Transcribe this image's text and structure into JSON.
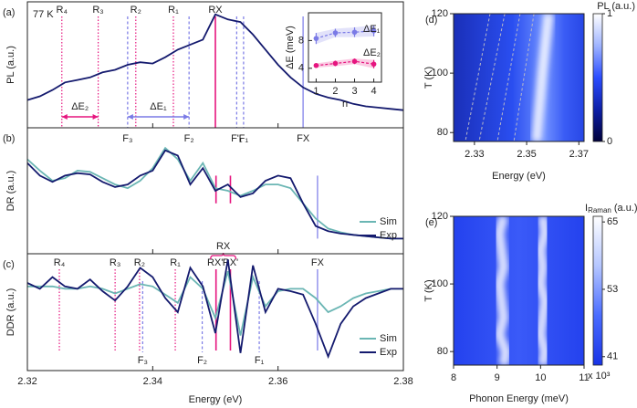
{
  "chart_data": [
    {
      "type": "line",
      "panel_label": "(a)",
      "annotation": "77 K",
      "ylabel": "PL (a.u.)",
      "xlim": [
        2.32,
        2.38
      ],
      "ylim": [
        0,
        1
      ],
      "color": "#141a6e",
      "x": [
        2.32,
        2.322,
        2.324,
        2.326,
        2.328,
        2.33,
        2.332,
        2.334,
        2.336,
        2.338,
        2.34,
        2.342,
        2.344,
        2.346,
        2.348,
        2.35,
        2.352,
        2.354,
        2.356,
        2.358,
        2.36,
        2.362,
        2.364,
        2.366,
        2.368,
        2.37,
        2.372,
        2.374,
        2.376,
        2.378,
        2.38
      ],
      "values": [
        0.22,
        0.25,
        0.3,
        0.36,
        0.38,
        0.4,
        0.44,
        0.46,
        0.5,
        0.52,
        0.51,
        0.56,
        0.62,
        0.66,
        0.7,
        0.9,
        0.86,
        0.84,
        0.74,
        0.62,
        0.5,
        0.4,
        0.32,
        0.27,
        0.24,
        0.22,
        0.19,
        0.17,
        0.16,
        0.15,
        0.14
      ],
      "top_lines": [
        {
          "label": "R₄",
          "x": 2.3255,
          "color": "#e6157f",
          "style": "dotted"
        },
        {
          "label": "R₃",
          "x": 2.3313,
          "color": "#e6157f",
          "style": "dotted"
        },
        {
          "label": "R₂",
          "x": 2.3373,
          "color": "#e6157f",
          "style": "dotted"
        },
        {
          "label": "R₁",
          "x": 2.3433,
          "color": "#e6157f",
          "style": "dotted"
        },
        {
          "label": "RX",
          "x": 2.35,
          "color": "#e6157f",
          "style": "solid"
        }
      ],
      "bottom_lines": [
        {
          "label": "F₃",
          "x": 2.336,
          "color": "#7a7ae6",
          "style": "dashed"
        },
        {
          "label": "F₂",
          "x": 2.3458,
          "color": "#7a7ae6",
          "style": "dashed"
        },
        {
          "label": "F'₁",
          "x": 2.3534,
          "color": "#7a7ae6",
          "style": "dashed"
        },
        {
          "label": "F₁",
          "x": 2.3545,
          "color": "#7a7ae6",
          "style": "dashed"
        },
        {
          "label": "FX",
          "x": 2.364,
          "color": "#9a9aee",
          "style": "solid"
        }
      ],
      "spans": [
        {
          "label": "ΔE₂",
          "from": 2.3255,
          "to": 2.3313,
          "color": "#e6157f"
        },
        {
          "label": "ΔE₁",
          "from": 2.336,
          "to": 2.3458,
          "color": "#7a7ae6"
        }
      ]
    },
    {
      "type": "errorbar",
      "xlabel": "n",
      "ylabel": "ΔE (meV)",
      "x": [
        1,
        2,
        3,
        4
      ],
      "xlim": [
        0.6,
        4.4
      ],
      "ylim": [
        2,
        12
      ],
      "xticks": [
        1,
        2,
        3,
        4
      ],
      "yticks": [
        4,
        8
      ],
      "series": [
        {
          "name": "ΔE₁",
          "color": "#7a7ae6",
          "values": [
            8.3,
            9.1,
            9.2,
            9.4
          ],
          "errors": [
            0.8,
            0.6,
            0.7,
            0.8
          ]
        },
        {
          "name": "ΔE₂",
          "color": "#e6157f",
          "values": [
            4.4,
            4.7,
            5.0,
            4.6
          ],
          "errors": [
            0.3,
            0.4,
            0.4,
            0.6
          ]
        }
      ]
    },
    {
      "type": "line",
      "panel_label": "(b)",
      "ylabel": "DR (a.u.)",
      "xlim": [
        2.32,
        2.38
      ],
      "ylim": [
        0,
        1
      ],
      "legend": "lower right",
      "x": [
        2.32,
        2.322,
        2.324,
        2.326,
        2.328,
        2.33,
        2.332,
        2.334,
        2.336,
        2.338,
        2.34,
        2.342,
        2.344,
        2.346,
        2.348,
        2.35,
        2.352,
        2.354,
        2.356,
        2.358,
        2.36,
        2.362,
        2.364,
        2.366,
        2.368,
        2.37,
        2.372,
        2.374,
        2.376,
        2.378,
        2.38
      ],
      "series": [
        {
          "name": "Sim",
          "color": "#6bb6b4",
          "values": [
            0.75,
            0.66,
            0.58,
            0.6,
            0.66,
            0.65,
            0.6,
            0.55,
            0.52,
            0.58,
            0.68,
            0.84,
            0.75,
            0.58,
            0.72,
            0.52,
            0.5,
            0.46,
            0.5,
            0.55,
            0.55,
            0.52,
            0.4,
            0.28,
            0.2,
            0.17,
            0.15,
            0.14,
            0.13,
            0.12,
            0.12
          ]
        },
        {
          "name": "Exp",
          "color": "#141a6e",
          "values": [
            0.72,
            0.62,
            0.57,
            0.62,
            0.64,
            0.63,
            0.57,
            0.53,
            0.55,
            0.62,
            0.66,
            0.82,
            0.78,
            0.55,
            0.68,
            0.5,
            0.55,
            0.45,
            0.48,
            0.58,
            0.62,
            0.6,
            0.4,
            0.22,
            0.18,
            0.16,
            0.15,
            0.14,
            0.13,
            0.12,
            0.12
          ]
        }
      ],
      "markers": [
        {
          "x": 2.3501,
          "color": "#e6157f",
          "style": "solid"
        },
        {
          "x": 2.3524,
          "color": "#e6157f",
          "style": "solid"
        },
        {
          "x": 2.3663,
          "color": "#9a9aee",
          "style": "solid"
        }
      ]
    },
    {
      "type": "line",
      "panel_label": "(c)",
      "ylabel": "DDR (a.u.)",
      "xlabel": "Energy (eV)",
      "xlim": [
        2.32,
        2.38
      ],
      "ylim": [
        0,
        1
      ],
      "xticks": [
        2.32,
        2.34,
        2.36,
        2.38
      ],
      "legend": "lower right",
      "group_label": "RX",
      "x": [
        2.32,
        2.322,
        2.324,
        2.326,
        2.328,
        2.33,
        2.332,
        2.334,
        2.336,
        2.338,
        2.34,
        2.342,
        2.344,
        2.346,
        2.348,
        2.35,
        2.352,
        2.354,
        2.356,
        2.358,
        2.36,
        2.362,
        2.364,
        2.366,
        2.368,
        2.37,
        2.372,
        2.374,
        2.376,
        2.378,
        2.38
      ],
      "series": [
        {
          "name": "Sim",
          "color": "#6bb6b4",
          "values": [
            0.72,
            0.72,
            0.72,
            0.7,
            0.7,
            0.72,
            0.7,
            0.66,
            0.7,
            0.74,
            0.72,
            0.65,
            0.58,
            0.8,
            0.7,
            0.45,
            0.85,
            0.3,
            0.8,
            0.55,
            0.68,
            0.7,
            0.7,
            0.62,
            0.5,
            0.55,
            0.62,
            0.66,
            0.68,
            0.7,
            0.7
          ]
        },
        {
          "name": "Exp",
          "color": "#141a6e",
          "values": [
            0.75,
            0.7,
            0.8,
            0.72,
            0.7,
            0.78,
            0.68,
            0.6,
            0.72,
            0.88,
            0.8,
            0.62,
            0.5,
            0.88,
            0.72,
            0.32,
            0.95,
            0.15,
            0.9,
            0.5,
            0.7,
            0.68,
            0.65,
            0.4,
            0.12,
            0.4,
            0.55,
            0.62,
            0.66,
            0.7,
            0.7
          ]
        }
      ],
      "top_lines": [
        {
          "label": "R₄",
          "x": 2.3251,
          "color": "#e6157f",
          "style": "dotted"
        },
        {
          "label": "R₃",
          "x": 2.334,
          "color": "#e6157f",
          "style": "dotted"
        },
        {
          "label": "R₂",
          "x": 2.3379,
          "color": "#e6157f",
          "style": "dotted"
        },
        {
          "label": "R₁",
          "x": 2.3436,
          "color": "#e6157f",
          "style": "dotted"
        },
        {
          "label": "RX''",
          "x": 2.3501,
          "color": "#e6157f",
          "style": "solid"
        },
        {
          "label": "RX'",
          "x": 2.3524,
          "color": "#e6157f",
          "style": "solid"
        },
        {
          "label": "FX",
          "x": 2.3663,
          "color": "#9a9aee",
          "style": "solid"
        }
      ],
      "bottom_lines": [
        {
          "label": "F₃",
          "x": 2.3384,
          "color": "#7a7ae6",
          "style": "dashed"
        },
        {
          "label": "F₂",
          "x": 2.3479,
          "color": "#7a7ae6",
          "style": "dashed"
        },
        {
          "label": "F₁",
          "x": 2.357,
          "color": "#7a7ae6",
          "style": "dashed"
        }
      ]
    },
    {
      "type": "heatmap",
      "panel_label": "(d)",
      "xlabel": "Energy (eV)",
      "ylabel": "T (K)",
      "xlim": [
        2.322,
        2.372
      ],
      "ylim": [
        77,
        120
      ],
      "xticks": [
        2.33,
        2.35,
        2.37
      ],
      "yticks": [
        80,
        100,
        120
      ],
      "colormap": [
        "#00003a",
        "#0d1fa8",
        "#2b4dff",
        "#9fb4ff",
        "#ffffff"
      ],
      "colorbar": {
        "label": "PL (a.u.)",
        "lim": [
          0,
          1
        ],
        "ticks": [
          0,
          1
        ]
      },
      "ridge": {
        "color": "#ffffff",
        "T": [
          77,
          85,
          90,
          100,
          110,
          120
        ],
        "energy": [
          2.3538,
          2.3545,
          2.355,
          2.356,
          2.3572,
          2.3585
        ]
      },
      "dashed_lines": [
        {
          "color": "#b8b8c8",
          "T": [
            120,
            77
          ],
          "energy": [
            2.336,
            2.3265
          ]
        },
        {
          "color": "#b8b8c8",
          "T": [
            120,
            77
          ],
          "energy": [
            2.3416,
            2.3318
          ]
        },
        {
          "color": "#b8b8c8",
          "T": [
            120,
            77
          ],
          "energy": [
            2.3475,
            2.3388
          ]
        },
        {
          "color": "#b8b8c8",
          "T": [
            120,
            77
          ],
          "energy": [
            2.3528,
            2.3451
          ]
        }
      ]
    },
    {
      "type": "heatmap",
      "panel_label": "(e)",
      "xlabel": "Phonon Energy (meV)",
      "ylabel": "T (K)",
      "xlim": [
        8,
        11
      ],
      "ylim": [
        76,
        120
      ],
      "xticks": [
        8,
        9,
        10,
        11
      ],
      "yticks": [
        80,
        100,
        120
      ],
      "colormap": [
        "#1833e6",
        "#4a6cff",
        "#b5c6ff",
        "#ffffff"
      ],
      "colorbar": {
        "label": "I",
        "label_sub": "Raman",
        "unit": "(a.u.)",
        "lim": [
          39.5,
          66
        ],
        "ticks": [
          41,
          53,
          65
        ],
        "multiplier": "x 10³"
      },
      "peaks": [
        {
          "color": "#ffffff",
          "T": [
            76,
            80,
            85,
            90,
            95,
            100,
            105,
            110,
            115,
            120
          ],
          "energy": [
            9.15,
            9.2,
            9.05,
            9.15,
            9.1,
            9.05,
            9.15,
            9.1,
            9.05,
            9.15
          ]
        },
        {
          "color": "#ffffff",
          "T": [
            76,
            80,
            85,
            90,
            95,
            100,
            105,
            110,
            115,
            120
          ],
          "energy": [
            10.05,
            10.1,
            10.0,
            10.05,
            10.1,
            10.0,
            10.05,
            10.0,
            10.1,
            10.05
          ]
        }
      ]
    }
  ]
}
